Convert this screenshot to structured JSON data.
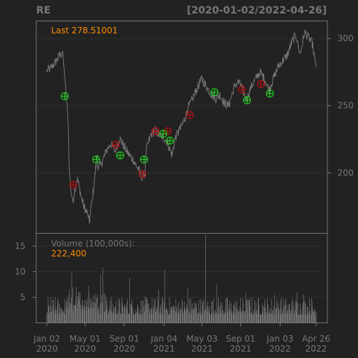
{
  "header": {
    "symbol": "RE",
    "date_range": "[2020-01-02/2022-04-26]"
  },
  "colors": {
    "background": "#222222",
    "frame": "#777777",
    "price_line": "#777777",
    "volume_bars": "#777777",
    "annotation": "#FF8C00",
    "buy_marker": "#22CC22",
    "sell_marker": "#AA1111",
    "grid": "#2E2E2E"
  },
  "chart_data": [
    {
      "type": "line",
      "panel": "price",
      "annotation_label": "Last 278.51001",
      "last_value": 278.51001,
      "ylim": [
        155,
        313
      ],
      "y_ticks": [
        200,
        250,
        300
      ],
      "y_tick_labels": [
        "200",
        "250",
        "300"
      ],
      "grid": true,
      "series": [
        {
          "values_by_date": [
            [
              "2020-01-02",
              276
            ],
            [
              "2020-01-15",
              278
            ],
            [
              "2020-02-03",
              284
            ],
            [
              "2020-02-10",
              287
            ],
            [
              "2020-02-20",
              290
            ],
            [
              "2020-02-26",
              274
            ],
            [
              "2020-03-02",
              258
            ],
            [
              "2020-03-09",
              238
            ],
            [
              "2020-03-12",
              205
            ],
            [
              "2020-03-16",
              190
            ],
            [
              "2020-03-23",
              178
            ],
            [
              "2020-03-30",
              188
            ],
            [
              "2020-04-06",
              196
            ],
            [
              "2020-04-13",
              189
            ],
            [
              "2020-04-20",
              181
            ],
            [
              "2020-04-27",
              175
            ],
            [
              "2020-05-04",
              172
            ],
            [
              "2020-05-11",
              168
            ],
            [
              "2020-05-14",
              163
            ],
            [
              "2020-05-26",
              185
            ],
            [
              "2020-06-08",
              214
            ],
            [
              "2020-06-11",
              203
            ],
            [
              "2020-06-22",
              207
            ],
            [
              "2020-07-06",
              216
            ],
            [
              "2020-07-20",
              222
            ],
            [
              "2020-08-03",
              216
            ],
            [
              "2020-08-17",
              226
            ],
            [
              "2020-08-31",
              220
            ],
            [
              "2020-09-14",
              214
            ],
            [
              "2020-09-28",
              210
            ],
            [
              "2020-10-12",
              204
            ],
            [
              "2020-10-26",
              197
            ],
            [
              "2020-11-05",
              200
            ],
            [
              "2020-11-09",
              217
            ],
            [
              "2020-11-23",
              228
            ],
            [
              "2020-12-07",
              232
            ],
            [
              "2020-12-21",
              228
            ],
            [
              "2021-01-04",
              226
            ],
            [
              "2021-01-15",
              222
            ],
            [
              "2021-01-29",
              213
            ],
            [
              "2021-02-08",
              226
            ],
            [
              "2021-02-22",
              232
            ],
            [
              "2021-03-08",
              239
            ],
            [
              "2021-03-22",
              249
            ],
            [
              "2021-04-05",
              256
            ],
            [
              "2021-04-19",
              264
            ],
            [
              "2021-05-03",
              270
            ],
            [
              "2021-05-17",
              264
            ],
            [
              "2021-05-31",
              259
            ],
            [
              "2021-06-14",
              255
            ],
            [
              "2021-06-28",
              258
            ],
            [
              "2021-07-12",
              252
            ],
            [
              "2021-07-26",
              250
            ],
            [
              "2021-08-09",
              262
            ],
            [
              "2021-08-23",
              268
            ],
            [
              "2021-09-06",
              263
            ],
            [
              "2021-09-20",
              254
            ],
            [
              "2021-10-04",
              264
            ],
            [
              "2021-10-18",
              270
            ],
            [
              "2021-11-01",
              275
            ],
            [
              "2021-11-15",
              270
            ],
            [
              "2021-11-29",
              262
            ],
            [
              "2021-12-13",
              270
            ],
            [
              "2021-12-27",
              279
            ],
            [
              "2022-01-10",
              283
            ],
            [
              "2022-01-24",
              287
            ],
            [
              "2022-02-07",
              296
            ],
            [
              "2022-02-21",
              303
            ],
            [
              "2022-03-07",
              288
            ],
            [
              "2022-03-21",
              305
            ],
            [
              "2022-04-04",
              300
            ],
            [
              "2022-04-14",
              296
            ],
            [
              "2022-04-26",
              278.5
            ]
          ]
        }
      ],
      "signals": {
        "buy": [
          [
            "2020-02-27",
            257
          ],
          [
            "2020-06-05",
            210
          ],
          [
            "2020-08-19",
            213
          ],
          [
            "2020-11-02",
            210
          ],
          [
            "2021-01-01",
            229
          ],
          [
            "2021-01-22",
            224
          ],
          [
            "2021-06-11",
            260
          ],
          [
            "2021-09-21",
            254
          ],
          [
            "2021-12-02",
            259
          ]
        ],
        "sell": [
          [
            "2020-03-25",
            191
          ],
          [
            "2020-08-05",
            221
          ],
          [
            "2020-10-28",
            199
          ],
          [
            "2020-12-08",
            231
          ],
          [
            "2021-01-15",
            231
          ],
          [
            "2021-03-26",
            243
          ],
          [
            "2021-09-05",
            262
          ],
          [
            "2021-11-04",
            266
          ]
        ]
      }
    },
    {
      "type": "bar",
      "panel": "volume",
      "annotation_label": "Volume (100,000s):",
      "annotation_value": "222,400",
      "last_value": 2.224,
      "ylim": [
        0,
        17.5
      ],
      "y_ticks": [
        5,
        10,
        15
      ],
      "y_tick_labels": [
        "5",
        "10",
        "15"
      ],
      "baseline": 1.6,
      "spikes_by_date": [
        [
          "2020-03-13",
          6.5
        ],
        [
          "2020-03-20",
          9.8
        ],
        [
          "2020-04-03",
          7.0
        ],
        [
          "2020-05-12",
          7.2
        ],
        [
          "2020-06-19",
          9.4
        ],
        [
          "2020-06-26",
          10.8
        ],
        [
          "2020-09-18",
          8.8
        ],
        [
          "2020-12-18",
          6.5
        ],
        [
          "2021-01-06",
          10.3
        ],
        [
          "2021-03-19",
          6.8
        ],
        [
          "2021-05-14",
          17.3
        ],
        [
          "2021-06-18",
          7.5
        ],
        [
          "2021-09-17",
          5.8
        ],
        [
          "2021-12-17",
          5.5
        ],
        [
          "2022-02-25",
          6.0
        ],
        [
          "2022-03-18",
          5.6
        ]
      ]
    }
  ],
  "x_axis": {
    "start_date": "2020-01-02",
    "end_date": "2022-04-26",
    "ticks": [
      {
        "date": "2020-01-02",
        "line1": "Jan 02",
        "line2": "2020"
      },
      {
        "date": "2020-05-01",
        "line1": "May 01",
        "line2": "2020"
      },
      {
        "date": "2020-09-01",
        "line1": "Sep 01",
        "line2": "2020"
      },
      {
        "date": "2021-01-04",
        "line1": "Jan 04",
        "line2": "2021"
      },
      {
        "date": "2021-05-03",
        "line1": "May 03",
        "line2": "2021"
      },
      {
        "date": "2021-09-01",
        "line1": "Sep 01",
        "line2": "2021"
      },
      {
        "date": "2022-01-03",
        "line1": "Jan 03",
        "line2": "2022"
      },
      {
        "date": "2022-04-26",
        "line1": "Apr 26",
        "line2": "2022"
      }
    ]
  }
}
